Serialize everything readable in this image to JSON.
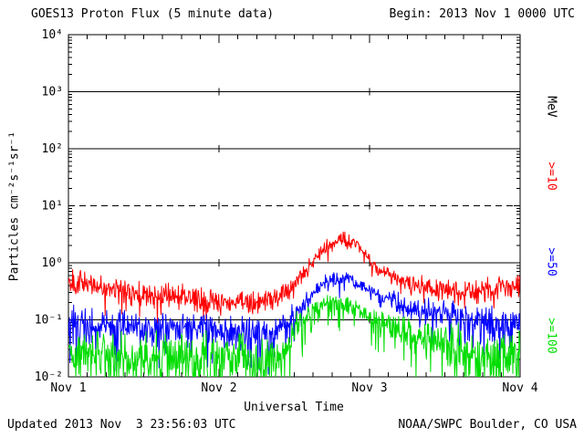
{
  "header": {
    "title": "GOES13 Proton Flux (5 minute data)",
    "begin_label": "Begin: 2013 Nov 1 0000 UTC"
  },
  "footer": {
    "updated": "Updated 2013 Nov  3 23:56:03 UTC",
    "source": "NOAA/SWPC Boulder, CO USA"
  },
  "axes": {
    "x_label": "Universal Time",
    "y_label": "Particles cm⁻²s⁻¹sr⁻¹"
  },
  "right_labels": [
    {
      "text": "MeV",
      "color": "#000000"
    },
    {
      "text": ">=10",
      "color": "#ff0000"
    },
    {
      "text": ">=50",
      "color": "#0000ff"
    },
    {
      "text": ">=100",
      "color": "#00dd00"
    }
  ],
  "chart_data": {
    "type": "line",
    "title": "GOES13 Proton Flux (5 minute data)",
    "xlabel": "Universal Time",
    "ylabel": "Particles cm^-2 s^-1 sr^-1",
    "x_tick_labels": [
      "Nov 1",
      "Nov 2",
      "Nov 3",
      "Nov 4"
    ],
    "x_range_days": [
      0,
      3
    ],
    "y_scale": "log10",
    "y_log_range_exponents": [
      -2,
      4
    ],
    "y_tick_labels": [
      "10⁴",
      "10³",
      "10²",
      "10¹",
      "10⁰",
      "10⁻¹",
      "10⁻²"
    ],
    "y_tick_exponents": [
      4,
      3,
      2,
      1,
      0,
      -1,
      -2
    ],
    "solid_grid_exponents": [
      3,
      2,
      0,
      -1
    ],
    "dashed_grid_exponents": [
      1
    ],
    "grid": "horizontal-decades",
    "legend_position": "right-rotated",
    "points_per_day": 288,
    "event_note": "Proton enhancement peaking late Nov 2: >=10 MeV ~3, >=50 MeV ~0.6, >=100 MeV ~0.2",
    "series": [
      {
        "id": "ge10",
        "name": ">=10 MeV",
        "color": "#ff0000",
        "seed": 101,
        "spike_prob": 0.05,
        "spike_scale": 1.5,
        "log10_flux_anchors": [
          [
            0,
            -0.3
          ],
          [
            0.2,
            -0.4
          ],
          [
            0.5,
            -0.55
          ],
          [
            0.8,
            -0.62
          ],
          [
            1.0,
            -0.7
          ],
          [
            1.2,
            -0.68
          ],
          [
            1.4,
            -0.6
          ],
          [
            1.5,
            -0.35
          ],
          [
            1.6,
            -0.05
          ],
          [
            1.7,
            0.25
          ],
          [
            1.8,
            0.42
          ],
          [
            1.9,
            0.38
          ],
          [
            2.0,
            0.05
          ],
          [
            2.1,
            -0.2
          ],
          [
            2.3,
            -0.4
          ],
          [
            2.6,
            -0.5
          ],
          [
            2.85,
            -0.45
          ],
          [
            3,
            -0.38
          ]
        ],
        "noise_sigma_anchors": [
          [
            0,
            0.16
          ],
          [
            1.3,
            0.16
          ],
          [
            1.6,
            0.09
          ],
          [
            2.0,
            0.09
          ],
          [
            2.3,
            0.14
          ],
          [
            3,
            0.16
          ]
        ]
      },
      {
        "id": "ge50",
        "name": ">=50 MeV",
        "color": "#0000ff",
        "seed": 202,
        "spike_prob": 0.09,
        "spike_scale": 2.2,
        "log10_flux_anchors": [
          [
            0,
            -1.0
          ],
          [
            0.25,
            -1.05
          ],
          [
            0.6,
            -1.15
          ],
          [
            1.0,
            -1.2
          ],
          [
            1.35,
            -1.25
          ],
          [
            1.45,
            -1.05
          ],
          [
            1.55,
            -0.75
          ],
          [
            1.65,
            -0.45
          ],
          [
            1.75,
            -0.28
          ],
          [
            1.85,
            -0.26
          ],
          [
            1.95,
            -0.4
          ],
          [
            2.1,
            -0.6
          ],
          [
            2.3,
            -0.8
          ],
          [
            2.6,
            -0.95
          ],
          [
            3,
            -1.05
          ]
        ],
        "noise_sigma_anchors": [
          [
            0,
            0.2
          ],
          [
            1.3,
            0.22
          ],
          [
            1.6,
            0.1
          ],
          [
            2.0,
            0.08
          ],
          [
            2.3,
            0.15
          ],
          [
            2.7,
            0.2
          ],
          [
            3,
            0.22
          ]
        ]
      },
      {
        "id": "ge100",
        "name": ">=100 MeV",
        "color": "#00dd00",
        "seed": 303,
        "spike_prob": 0.12,
        "spike_scale": 2.2,
        "log10_flux_anchors": [
          [
            0,
            -1.55
          ],
          [
            0.3,
            -1.6
          ],
          [
            0.7,
            -1.65
          ],
          [
            1.1,
            -1.65
          ],
          [
            1.4,
            -1.7
          ],
          [
            1.5,
            -1.15
          ],
          [
            1.6,
            -0.85
          ],
          [
            1.7,
            -0.72
          ],
          [
            1.8,
            -0.68
          ],
          [
            1.9,
            -0.8
          ],
          [
            2.0,
            -0.95
          ],
          [
            2.15,
            -1.15
          ],
          [
            2.35,
            -1.35
          ],
          [
            2.6,
            -1.5
          ],
          [
            2.8,
            -1.6
          ],
          [
            3,
            -1.6
          ]
        ],
        "noise_sigma_anchors": [
          [
            0,
            0.28
          ],
          [
            1.35,
            0.33
          ],
          [
            1.6,
            0.12
          ],
          [
            2.0,
            0.12
          ],
          [
            2.3,
            0.22
          ],
          [
            2.6,
            0.3
          ],
          [
            3,
            0.32
          ]
        ]
      }
    ]
  }
}
